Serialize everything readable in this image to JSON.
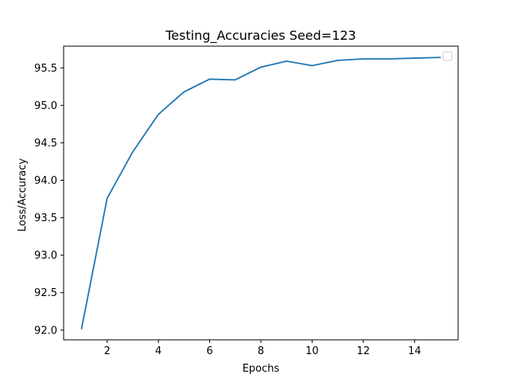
{
  "chart_data": {
    "type": "line",
    "title": "Testing_Accuracies Seed=123",
    "xlabel": "Epochs",
    "ylabel": "Loss/Accuracy",
    "xlim": [
      0.3,
      15.7
    ],
    "ylim": [
      91.87,
      95.79
    ],
    "x_ticks": [
      2,
      4,
      6,
      8,
      10,
      12,
      14
    ],
    "y_ticks": [
      92.0,
      92.5,
      93.0,
      93.5,
      94.0,
      94.5,
      95.0,
      95.5
    ],
    "y_tick_labels": [
      "92.0",
      "92.5",
      "93.0",
      "93.5",
      "94.0",
      "94.5",
      "95.0",
      "95.5"
    ],
    "grid": false,
    "legend": {
      "placement": "top-right",
      "entries": []
    },
    "series": [
      {
        "color": "#1f77b4",
        "x": [
          1,
          2,
          3,
          4,
          5,
          6,
          7,
          8,
          9,
          10,
          11,
          12,
          13,
          14,
          15
        ],
        "values": [
          92.02,
          93.76,
          94.38,
          94.88,
          95.18,
          95.35,
          95.34,
          95.51,
          95.59,
          95.53,
          95.6,
          95.62,
          95.62,
          95.63,
          95.64
        ]
      }
    ]
  }
}
